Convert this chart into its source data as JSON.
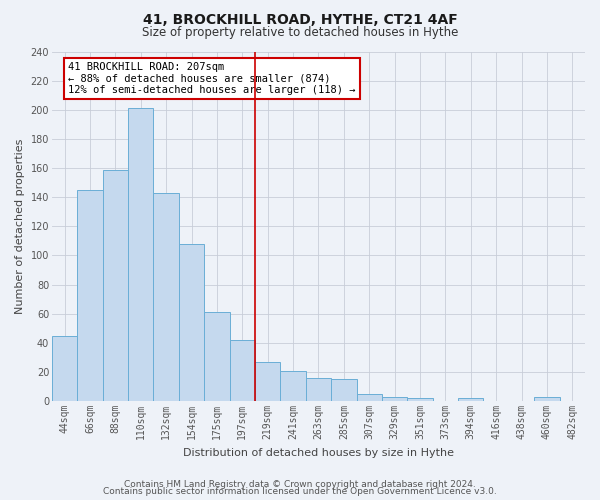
{
  "title": "41, BROCKHILL ROAD, HYTHE, CT21 4AF",
  "subtitle": "Size of property relative to detached houses in Hythe",
  "xlabel": "Distribution of detached houses by size in Hythe",
  "ylabel": "Number of detached properties",
  "bar_labels": [
    "44sqm",
    "66sqm",
    "88sqm",
    "110sqm",
    "132sqm",
    "154sqm",
    "175sqm",
    "197sqm",
    "219sqm",
    "241sqm",
    "263sqm",
    "285sqm",
    "307sqm",
    "329sqm",
    "351sqm",
    "373sqm",
    "394sqm",
    "416sqm",
    "438sqm",
    "460sqm",
    "482sqm"
  ],
  "bar_values": [
    45,
    145,
    159,
    201,
    143,
    108,
    61,
    42,
    27,
    21,
    16,
    15,
    5,
    3,
    2,
    0,
    2,
    0,
    0,
    3,
    0
  ],
  "bar_color": "#c5d9ee",
  "bar_edge_color": "#6aaed6",
  "vline_x_index": 7.5,
  "vline_color": "#cc0000",
  "annotation_text": "41 BROCKHILL ROAD: 207sqm\n← 88% of detached houses are smaller (874)\n12% of semi-detached houses are larger (118) →",
  "annotation_box_facecolor": "#ffffff",
  "annotation_box_edgecolor": "#cc0000",
  "ylim": [
    0,
    240
  ],
  "yticks": [
    0,
    20,
    40,
    60,
    80,
    100,
    120,
    140,
    160,
    180,
    200,
    220,
    240
  ],
  "bg_color": "#eef2f8",
  "plot_bg_color": "#eef2f8",
  "title_fontsize": 10,
  "subtitle_fontsize": 8.5,
  "axis_label_fontsize": 8,
  "tick_fontsize": 7,
  "annotation_fontsize": 7.5,
  "footer_fontsize": 6.5,
  "footer_line1": "Contains HM Land Registry data © Crown copyright and database right 2024.",
  "footer_line2": "Contains public sector information licensed under the Open Government Licence v3.0."
}
